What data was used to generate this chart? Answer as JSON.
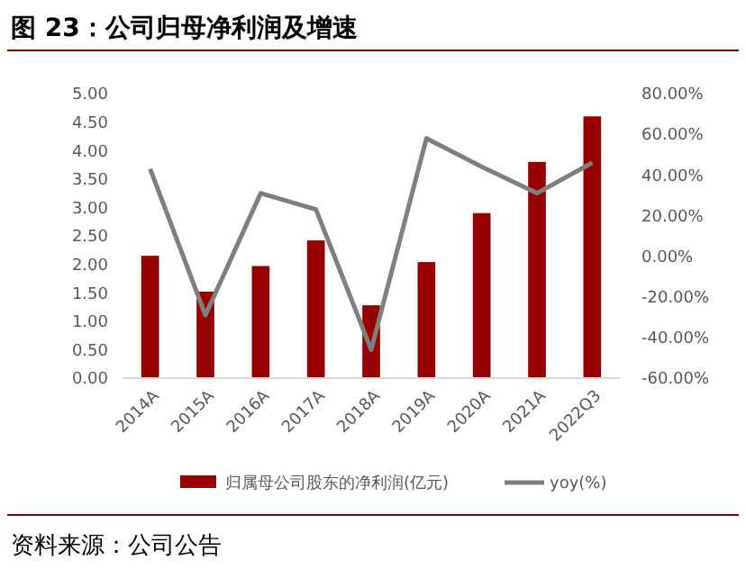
{
  "chart_data": {
    "type": "bar",
    "title": "图 23：公司归母净利润及增速",
    "categories": [
      "2014A",
      "2015A",
      "2016A",
      "2017A",
      "2018A",
      "2019A",
      "2020A",
      "2021A",
      "2022Q3"
    ],
    "series": [
      {
        "name": "归属母公司股东的净利润(亿元)",
        "color": "#990000",
        "values": [
          2.15,
          1.52,
          1.97,
          2.42,
          1.28,
          2.04,
          2.9,
          3.8,
          4.6
        ]
      },
      {
        "name": "yoy(%)",
        "type": "line",
        "axis": "y2",
        "color": "#7f7f7f",
        "values": [
          43,
          -29,
          31,
          23,
          -46,
          58,
          44,
          31,
          46
        ]
      }
    ],
    "ylim": [
      0,
      5
    ],
    "yticks": [
      {
        "value": 0,
        "label": "0.00"
      },
      {
        "value": 0.5,
        "label": "0.50"
      },
      {
        "value": 1,
        "label": "1.00"
      },
      {
        "value": 1.5,
        "label": "1.50"
      },
      {
        "value": 2,
        "label": "2.00"
      },
      {
        "value": 2.5,
        "label": "2.50"
      },
      {
        "value": 3,
        "label": "3.00"
      },
      {
        "value": 3.5,
        "label": "3.50"
      },
      {
        "value": 4,
        "label": "4.00"
      },
      {
        "value": 4.5,
        "label": "4.50"
      },
      {
        "value": 5,
        "label": "5.00"
      }
    ],
    "y2lim": [
      -60,
      80
    ],
    "y2ticks": [
      {
        "value": -60,
        "label": "-60.00%"
      },
      {
        "value": -40,
        "label": "-40.00%"
      },
      {
        "value": -20,
        "label": "-20.00%"
      },
      {
        "value": 0,
        "label": "0.00%"
      },
      {
        "value": 20,
        "label": "20.00%"
      },
      {
        "value": 40,
        "label": "40.00%"
      },
      {
        "value": 60,
        "label": "60.00%"
      },
      {
        "value": 80,
        "label": "80.00%"
      }
    ],
    "legend": "bottom",
    "grid": false,
    "marker": "none",
    "annotations": [
      "资料来源：公司公告"
    ]
  }
}
